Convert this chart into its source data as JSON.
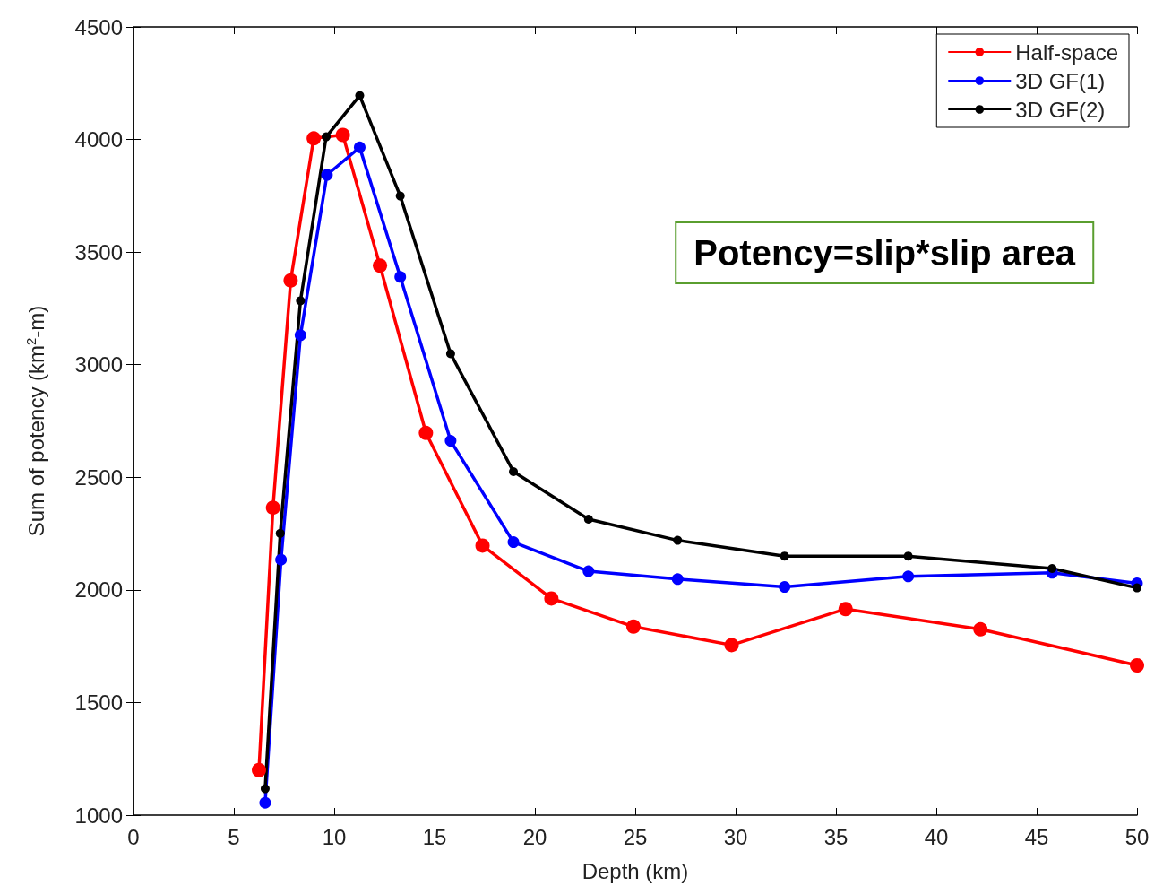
{
  "chart_data": {
    "type": "line",
    "xlabel": "Depth (km)",
    "ylabel": "Sum of potency (km$^{2}$-m)",
    "annotations": [
      "Potency=slip*slip area"
    ],
    "xlim": [
      0,
      50
    ],
    "xticks": [
      0,
      5,
      10,
      15,
      20,
      25,
      30,
      35,
      40,
      45,
      50
    ],
    "ylim": [
      1000,
      4500
    ],
    "yticks": [
      1000,
      1500,
      2000,
      2500,
      3000,
      3500,
      4000,
      4500
    ],
    "grid": false,
    "legend": "top right",
    "marker": "circle",
    "line_style": "solid",
    "series": [
      {
        "name": "Half-space",
        "color": "#ff0000",
        "x": [
          6.25,
          6.95,
          7.83,
          8.98,
          10.43,
          12.28,
          14.57,
          17.39,
          20.82,
          24.91,
          29.8,
          35.48,
          42.2,
          50
        ],
        "values": [
          1200,
          2365,
          3374,
          4005,
          4020,
          3440,
          2697,
          2197,
          1962,
          1837,
          1755,
          1915,
          1825,
          1665
        ]
      },
      {
        "name": "3D GF(1)",
        "color": "#0000ff",
        "x": [
          6.56,
          7.35,
          8.32,
          9.64,
          11.27,
          13.29,
          15.8,
          18.93,
          22.67,
          27.11,
          32.44,
          38.6,
          45.77,
          50
        ],
        "values": [
          1055,
          2134,
          3131,
          3843,
          3965,
          3390,
          2662,
          2212,
          2083,
          2048,
          2013,
          2060,
          2076,
          2029
        ]
      },
      {
        "name": "3D GF(2)",
        "color": "#000000",
        "x": [
          6.56,
          7.31,
          8.32,
          9.6,
          11.27,
          13.29,
          15.8,
          18.93,
          22.67,
          27.11,
          32.44,
          38.6,
          45.77,
          50
        ],
        "values": [
          1117,
          2251,
          3284,
          4012,
          4195,
          3749,
          3049,
          2525,
          2314,
          2220,
          2150,
          2150,
          2095,
          2009
        ]
      }
    ]
  }
}
